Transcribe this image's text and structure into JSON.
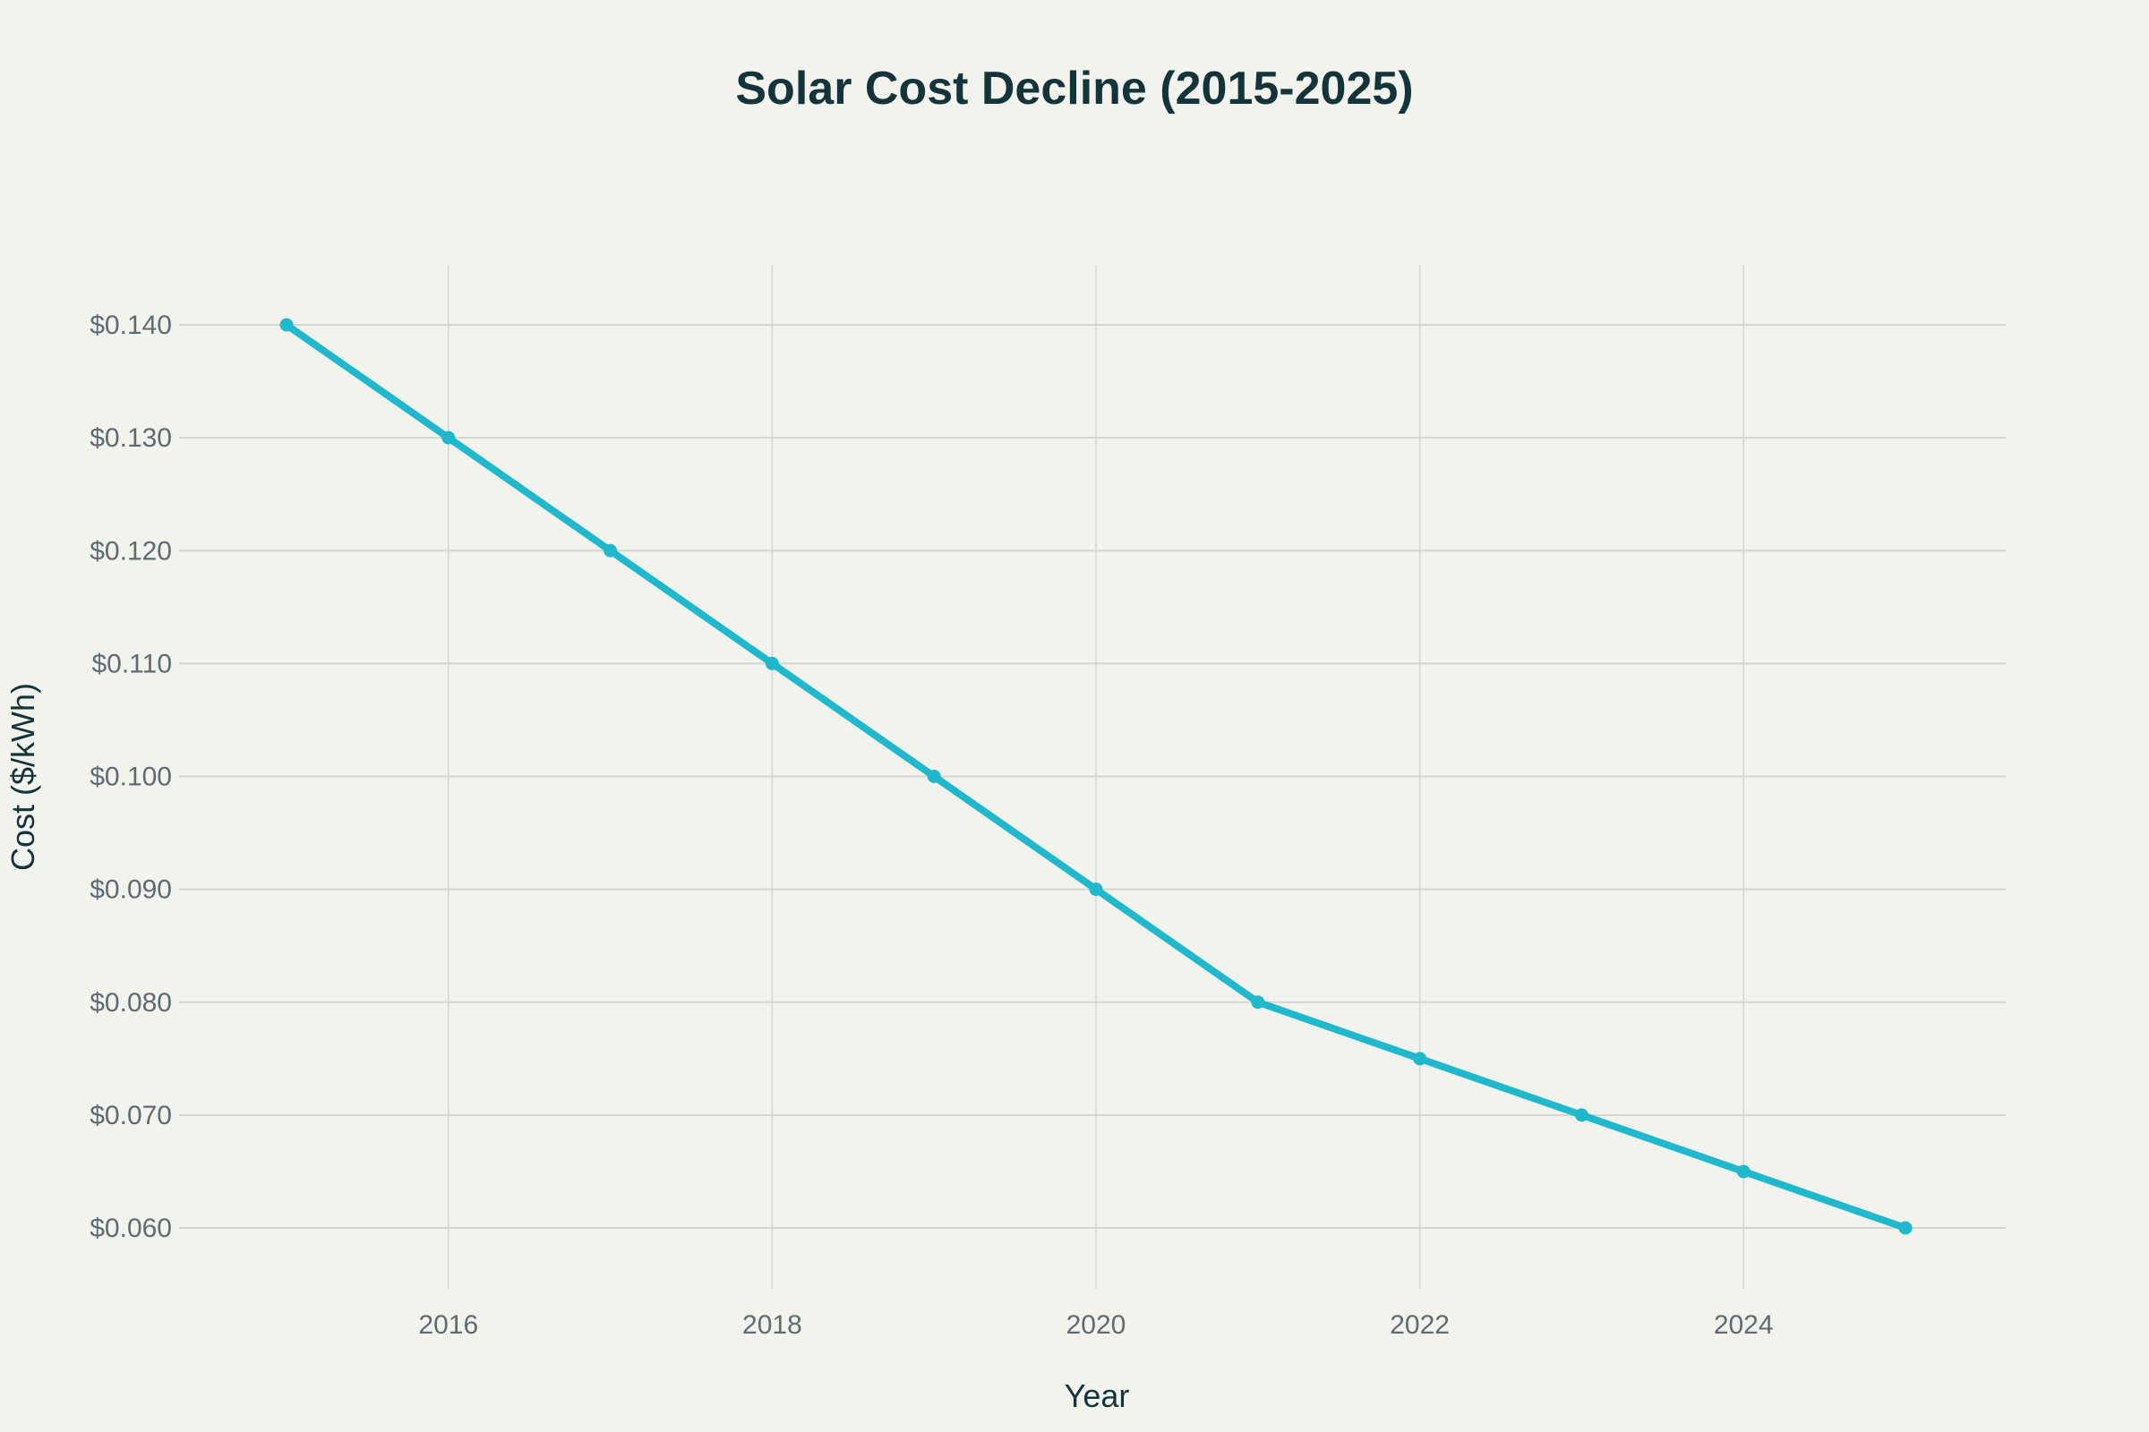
{
  "chart_data": {
    "type": "line",
    "title": "Solar Cost Decline (2015-2025)",
    "xlabel": "Year",
    "ylabel": "Cost ($/kWh)",
    "x": [
      2015,
      2016,
      2017,
      2018,
      2019,
      2020,
      2021,
      2022,
      2023,
      2024,
      2025
    ],
    "series": [
      {
        "name": "Solar Cost",
        "values": [
          0.14,
          0.13,
          0.12,
          0.11,
          0.1,
          0.09,
          0.08,
          0.075,
          0.07,
          0.065,
          0.06
        ],
        "color": "#1fb8cd"
      }
    ],
    "xlim": [
      2014.5,
      2025.6
    ],
    "ylim": [
      0.0547,
      0.1455
    ],
    "x_ticks": [
      2016,
      2018,
      2020,
      2022,
      2024
    ],
    "x_tick_labels": [
      "2016",
      "2018",
      "2020",
      "2022",
      "2024"
    ],
    "y_ticks": [
      0.06,
      0.07,
      0.08,
      0.09,
      0.1,
      0.11,
      0.12,
      0.13,
      0.14
    ],
    "y_tick_labels": [
      "$0.060",
      "$0.070",
      "$0.080",
      "$0.090",
      "$0.100",
      "$0.110",
      "$0.120",
      "$0.130",
      "$0.140"
    ],
    "grid": true,
    "legend": "none"
  },
  "colors": {
    "background": "#f3f3ee",
    "line": "#1fb8cd",
    "grid": "#d5d5d0",
    "title": "#13343b",
    "tick": "#5f6b72"
  }
}
